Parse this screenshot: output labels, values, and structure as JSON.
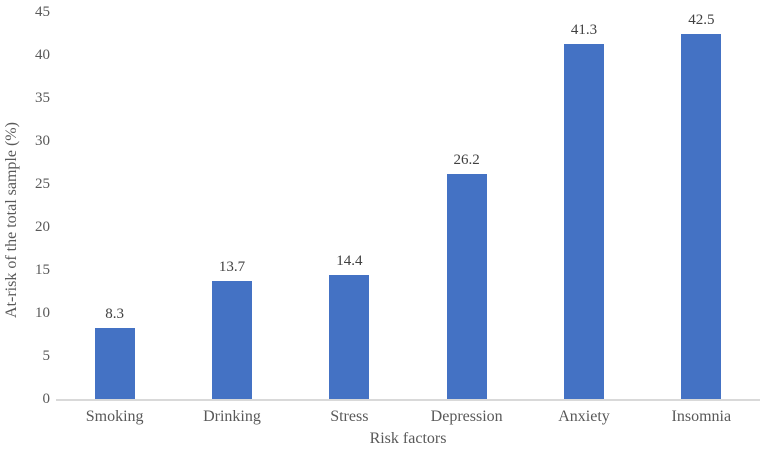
{
  "chart_data": {
    "type": "bar",
    "title": "",
    "categories": [
      "Smoking",
      "Drinking",
      "Stress",
      "Depression",
      "Anxiety",
      "Insomnia"
    ],
    "values": [
      8.3,
      13.7,
      14.4,
      26.2,
      41.3,
      42.5
    ],
    "data_labels": [
      "8.3",
      "13.7",
      "14.4",
      "26.2",
      "41.3",
      "42.5"
    ],
    "xlabel": "Risk factors",
    "ylabel": "At-risk of the total sample (%)",
    "ylim": [
      0,
      45
    ],
    "yticks": [
      0,
      5,
      10,
      15,
      20,
      25,
      30,
      35,
      40,
      45
    ],
    "grid": false,
    "legend": "none",
    "colors": {
      "bar": "#4472C4",
      "axis_line": "#D9D9D9",
      "tick_label": "#595959",
      "data_label": "#404040"
    }
  }
}
